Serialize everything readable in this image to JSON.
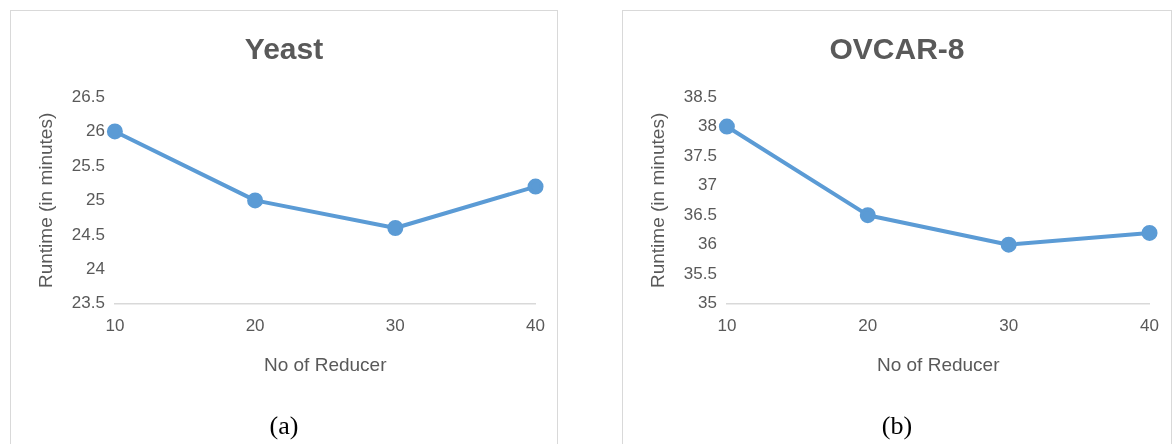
{
  "chart_data": [
    {
      "type": "line",
      "title": "Yeast",
      "xlabel": "No of Reducer",
      "ylabel": "Runtime (in minutes)",
      "categories": [
        "10",
        "20",
        "30",
        "40"
      ],
      "series": [
        {
          "color": "#5b9bd5",
          "values": [
            26,
            25,
            24.6,
            25.2
          ]
        }
      ],
      "ylim": [
        23.5,
        26.5
      ],
      "yticks": [
        23.5,
        24,
        24.5,
        25,
        25.5,
        26,
        26.5
      ],
      "grid": false,
      "legend": false,
      "marker": "circle",
      "line_style": "solid",
      "annotations": [
        "(a)"
      ]
    },
    {
      "type": "line",
      "title": "OVCAR-8",
      "xlabel": "No of Reducer",
      "ylabel": "Runtime (in minutes)",
      "categories": [
        "10",
        "20",
        "30",
        "40"
      ],
      "series": [
        {
          "color": "#5b9bd5",
          "values": [
            38,
            36.5,
            36,
            36.2
          ]
        }
      ],
      "ylim": [
        35,
        38.5
      ],
      "yticks": [
        35,
        35.5,
        36,
        36.5,
        37,
        37.5,
        38,
        38.5
      ],
      "grid": false,
      "legend": false,
      "marker": "circle",
      "line_style": "solid",
      "annotations": [
        "(b)"
      ]
    }
  ]
}
